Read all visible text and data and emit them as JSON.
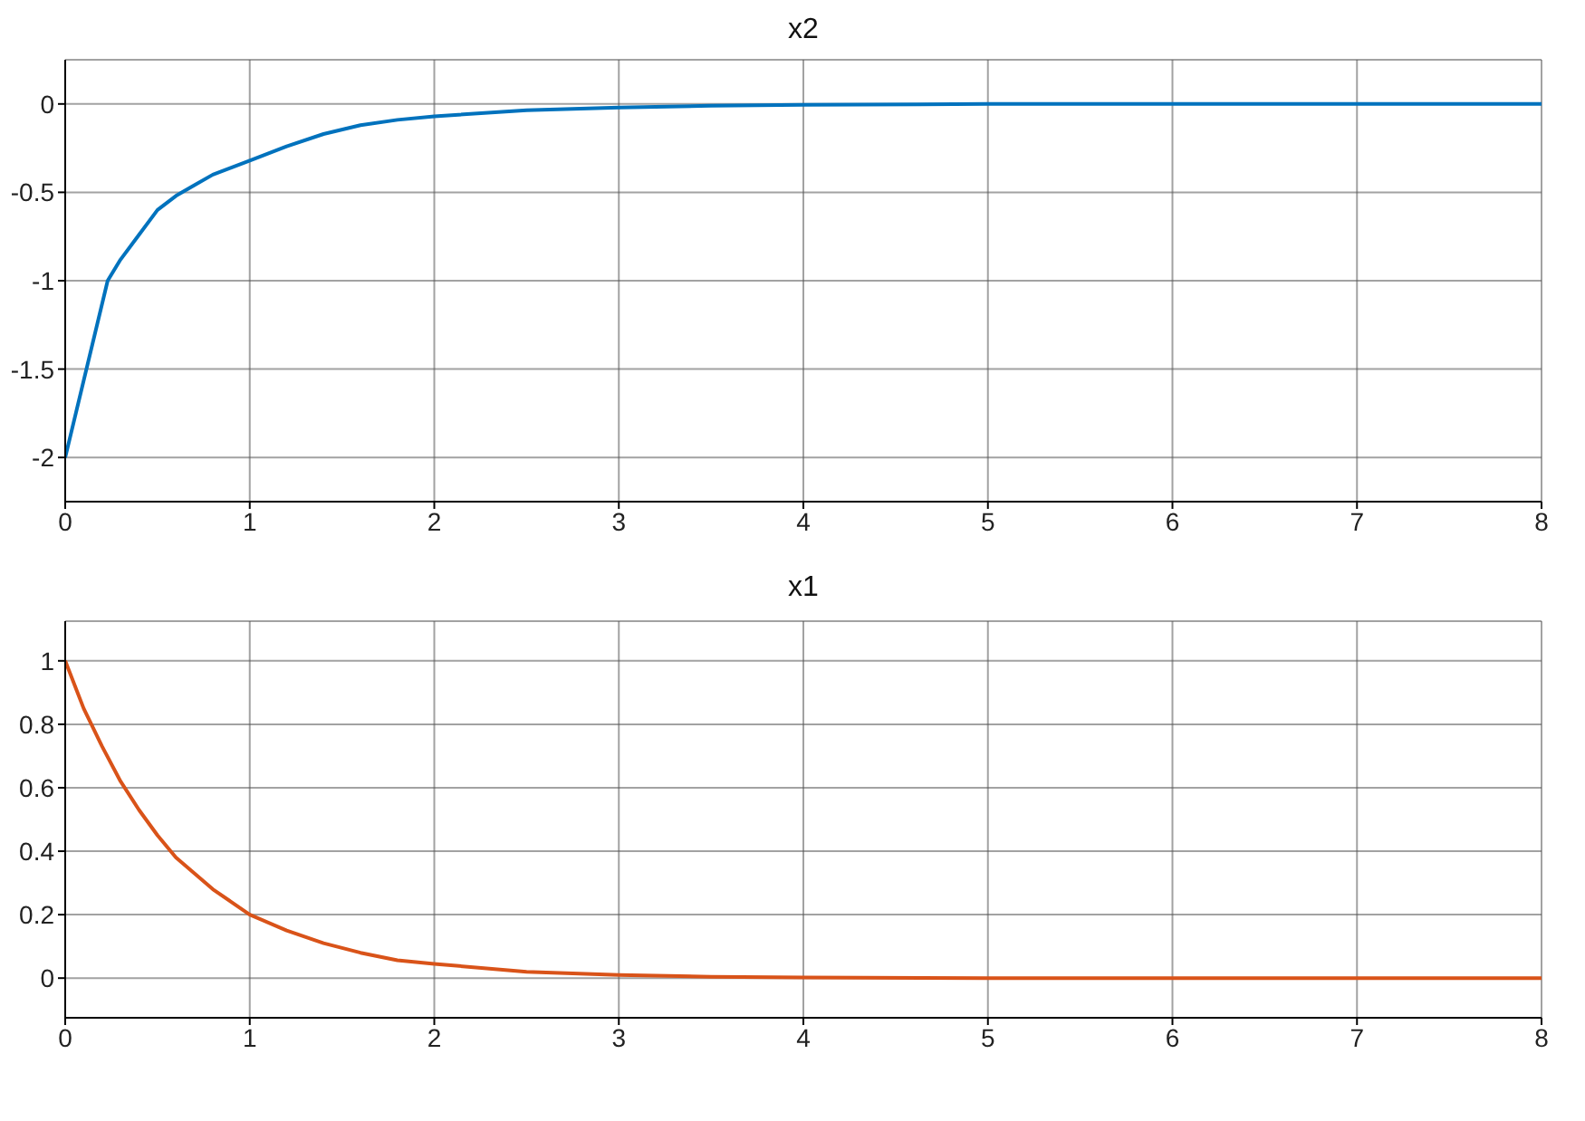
{
  "chart_data": [
    {
      "type": "line",
      "title": "x2",
      "x": [
        0,
        0.23,
        0.3,
        0.4,
        0.5,
        0.6,
        0.7,
        0.8,
        0.9,
        1,
        1.2,
        1.4,
        1.6,
        1.8,
        2,
        2.5,
        3,
        3.5,
        4,
        5,
        6,
        7,
        8
      ],
      "series": [
        {
          "color": "#0072bd",
          "values": [
            -2,
            -1,
            -0.88,
            -0.74,
            -0.6,
            -0.52,
            -0.46,
            -0.4,
            -0.36,
            -0.32,
            -0.24,
            -0.17,
            -0.12,
            -0.09,
            -0.07,
            -0.035,
            -0.02,
            -0.01,
            -0.005,
            0,
            0,
            0,
            0
          ]
        }
      ],
      "xlim": [
        0,
        8
      ],
      "xticks": [
        0,
        1,
        2,
        3,
        4,
        5,
        6,
        7,
        8
      ],
      "ylim": [
        -2.25,
        0.25
      ],
      "yticks": [
        -2,
        -1.5,
        -1,
        -0.5,
        0
      ],
      "grid": true
    },
    {
      "type": "line",
      "title": "x1",
      "x": [
        0,
        0.1,
        0.2,
        0.3,
        0.4,
        0.5,
        0.6,
        0.7,
        0.8,
        0.9,
        1,
        1.2,
        1.4,
        1.6,
        1.8,
        2,
        2.5,
        3,
        3.5,
        4,
        5,
        6,
        7,
        8
      ],
      "series": [
        {
          "color": "#d95319",
          "values": [
            1,
            0.85,
            0.73,
            0.62,
            0.53,
            0.45,
            0.38,
            0.33,
            0.28,
            0.24,
            0.2,
            0.15,
            0.11,
            0.08,
            0.056,
            0.045,
            0.02,
            0.01,
            0.004,
            0.002,
            0,
            0,
            0,
            0
          ]
        }
      ],
      "xlim": [
        0,
        8
      ],
      "xticks": [
        0,
        1,
        2,
        3,
        4,
        5,
        6,
        7,
        8
      ],
      "ylim": [
        -0.125,
        1.125
      ],
      "yticks": [
        0,
        0.2,
        0.4,
        0.6,
        0.8,
        1
      ],
      "grid": true
    }
  ]
}
